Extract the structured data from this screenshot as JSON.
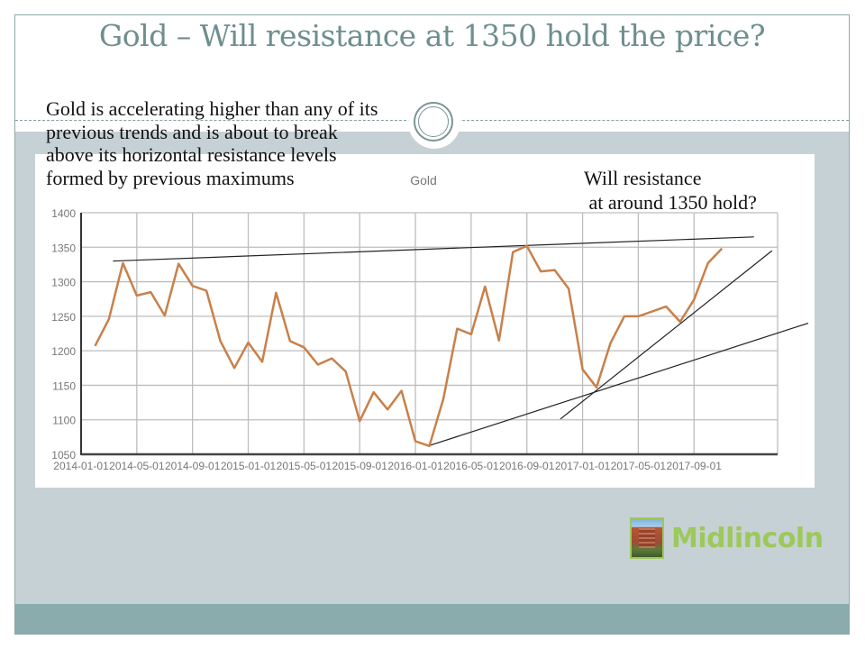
{
  "slide": {
    "title": "Gold – Will resistance at 1350 hold the price?",
    "intro_lines": [
      "Gold is accelerating higher than any of its",
      "previous trends  and is about to break",
      "above its horizontal resistance levels",
      "formed by previous maximums"
    ],
    "question_lines": [
      "Will resistance",
      " at around 1350 hold?"
    ],
    "logo_text": "Midlincoln",
    "colors": {
      "title": "#6f8e8e",
      "band": "#c6d1d6",
      "footer": "#8aacac",
      "series": "#c8804a",
      "logo": "#9dc85a"
    }
  },
  "chart_data": {
    "type": "line",
    "title": "Gold",
    "xlabel": "",
    "ylabel": "",
    "ylim": [
      1050,
      1400
    ],
    "yticks": [
      1050,
      1100,
      1150,
      1200,
      1250,
      1300,
      1350,
      1400
    ],
    "xtick_labels": [
      "2014-01-01",
      "2014-05-01",
      "2014-09-01",
      "2015-01-01",
      "2015-05-01",
      "2015-09-01",
      "2016-01-01",
      "2016-05-01",
      "2016-09-01",
      "2017-01-01",
      "2017-05-01",
      "2017-09-01"
    ],
    "x_range_months": [
      0,
      50
    ],
    "grid": true,
    "legend": "none",
    "series": [
      {
        "name": "Gold",
        "x_months": [
          1,
          2,
          3,
          4,
          5,
          6,
          7,
          8,
          9,
          10,
          11,
          12,
          13,
          14,
          15,
          16,
          17,
          18,
          19,
          20,
          21,
          22,
          23,
          24,
          25,
          26,
          27,
          28,
          29,
          30,
          31,
          32,
          33,
          34,
          35,
          36,
          37,
          38,
          39,
          40,
          41,
          42,
          43,
          44,
          45,
          46
        ],
        "values": [
          1207,
          1246,
          1327,
          1280,
          1285,
          1251,
          1326,
          1294,
          1287,
          1214,
          1175,
          1212,
          1184,
          1284,
          1214,
          1205,
          1180,
          1189,
          1170,
          1098,
          1140,
          1115,
          1142,
          1069,
          1062,
          1130,
          1232,
          1224,
          1293,
          1215,
          1343,
          1352,
          1315,
          1317,
          1290,
          1173,
          1147,
          1211,
          1250,
          1250,
          1257,
          1264,
          1242,
          1274,
          1327,
          1348
        ]
      }
    ],
    "trendlines": [
      {
        "name": "horizontal-resistance",
        "from": [
          2.3,
          1330
        ],
        "to": [
          48.3,
          1365
        ]
      },
      {
        "name": "long-support",
        "from": [
          24.9,
          1062
        ],
        "to": [
          52.2,
          1240
        ]
      },
      {
        "name": "steep-support",
        "from": [
          34.4,
          1101
        ],
        "to": [
          49.6,
          1345
        ]
      }
    ]
  }
}
